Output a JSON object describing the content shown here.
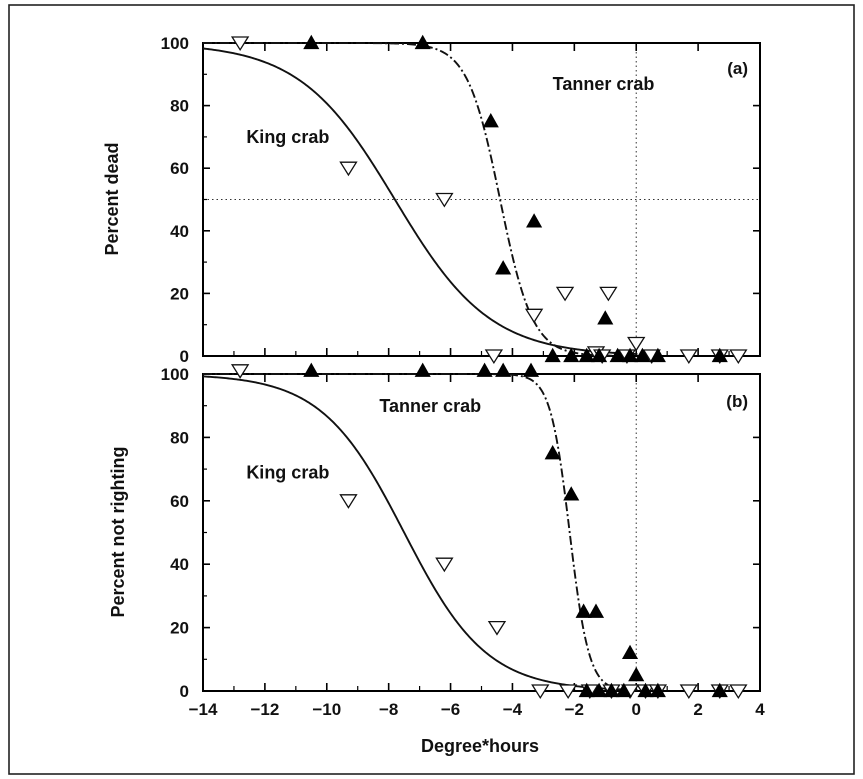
{
  "chart_data": [
    {
      "type": "scatter",
      "panel_label": "(a)",
      "ylabel": "Percent dead",
      "xlabel": "",
      "xlim": [
        -14,
        4
      ],
      "ylim": [
        0,
        100
      ],
      "x_ticks": [
        -14,
        -12,
        -10,
        -8,
        -6,
        -4,
        -2,
        0,
        2,
        4
      ],
      "y_ticks": [
        0,
        20,
        40,
        60,
        80,
        100
      ],
      "x_tick_labels_shown": false,
      "reference_lines": {
        "x": 0,
        "y": 50
      },
      "annotations": [
        {
          "text": "Tanner crab",
          "x": -2.7,
          "y": 85
        },
        {
          "text": "King crab",
          "x": -12.6,
          "y": 68
        }
      ],
      "series": [
        {
          "name": "King crab",
          "marker": "open-triangle-down",
          "points": [
            [
              -12.8,
              100
            ],
            [
              -9.3,
              60
            ],
            [
              -6.2,
              50
            ],
            [
              -4.6,
              0
            ],
            [
              -3.3,
              13
            ],
            [
              -2.3,
              20
            ],
            [
              -1.3,
              1
            ],
            [
              -1.1,
              0
            ],
            [
              -0.9,
              20
            ],
            [
              -0.3,
              0
            ],
            [
              0.0,
              4
            ],
            [
              0.5,
              0
            ],
            [
              1.7,
              0
            ],
            [
              2.7,
              0
            ],
            [
              3.3,
              0
            ]
          ],
          "fit": {
            "model": "logistic",
            "midpoint": -7.8,
            "slope": 0.65,
            "color": "#111111",
            "style": "solid"
          }
        },
        {
          "name": "Tanner crab",
          "marker": "filled-triangle-up",
          "points": [
            [
              -10.5,
              100
            ],
            [
              -6.9,
              100
            ],
            [
              -4.7,
              75
            ],
            [
              -4.3,
              28
            ],
            [
              -3.3,
              43
            ],
            [
              -2.7,
              0
            ],
            [
              -2.1,
              0
            ],
            [
              -1.6,
              0
            ],
            [
              -1.2,
              0
            ],
            [
              -1.0,
              12
            ],
            [
              -0.6,
              0
            ],
            [
              -0.2,
              0
            ],
            [
              0.2,
              0
            ],
            [
              0.7,
              0
            ],
            [
              2.7,
              0
            ]
          ],
          "fit": {
            "model": "logistic",
            "midpoint": -4.4,
            "slope": 1.9,
            "color": "#111111",
            "style": "dash-dot"
          }
        }
      ]
    },
    {
      "type": "scatter",
      "panel_label": "(b)",
      "ylabel": "Percent not righting",
      "xlabel": "Degree*hours",
      "xlim": [
        -14,
        4
      ],
      "ylim": [
        0,
        100
      ],
      "x_ticks": [
        -14,
        -12,
        -10,
        -8,
        -6,
        -4,
        -2,
        0,
        2,
        4
      ],
      "x_tick_labels": [
        "−14",
        "−12",
        "−10",
        "−8",
        "−6",
        "−4",
        "−2",
        "0",
        "2",
        "4"
      ],
      "y_ticks": [
        0,
        20,
        40,
        60,
        80,
        100
      ],
      "x_tick_labels_shown": true,
      "reference_lines": {
        "x": 0
      },
      "annotations": [
        {
          "text": "Tanner crab",
          "x": -8.3,
          "y": 88
        },
        {
          "text": "King crab",
          "x": -12.6,
          "y": 67
        }
      ],
      "series": [
        {
          "name": "King crab",
          "marker": "open-triangle-down",
          "points": [
            [
              -12.8,
              101
            ],
            [
              -9.3,
              60
            ],
            [
              -6.2,
              40
            ],
            [
              -4.5,
              20
            ],
            [
              -3.1,
              0
            ],
            [
              -2.2,
              0
            ],
            [
              -1.5,
              0
            ],
            [
              -0.8,
              0
            ],
            [
              -0.2,
              0
            ],
            [
              0.3,
              0
            ],
            [
              0.7,
              0
            ],
            [
              1.7,
              0
            ],
            [
              2.7,
              0
            ],
            [
              3.3,
              0
            ]
          ],
          "fit": {
            "model": "logistic",
            "midpoint": -7.5,
            "slope": 0.75,
            "color": "#111111",
            "style": "solid"
          }
        },
        {
          "name": "Tanner crab",
          "marker": "filled-triangle-up",
          "points": [
            [
              -10.5,
              101
            ],
            [
              -6.9,
              101
            ],
            [
              -4.9,
              101
            ],
            [
              -4.3,
              101
            ],
            [
              -3.4,
              101
            ],
            [
              -2.7,
              75
            ],
            [
              -2.1,
              62
            ],
            [
              -1.7,
              25
            ],
            [
              -1.3,
              25
            ],
            [
              -1.6,
              0
            ],
            [
              -1.2,
              0
            ],
            [
              -0.8,
              0
            ],
            [
              -0.4,
              0
            ],
            [
              -0.2,
              12
            ],
            [
              0.0,
              5
            ],
            [
              0.3,
              0
            ],
            [
              0.7,
              0
            ],
            [
              2.7,
              0
            ]
          ],
          "fit": {
            "model": "logistic",
            "midpoint": -2.15,
            "slope": 3.2,
            "color": "#111111",
            "style": "dash-dot"
          }
        }
      ]
    }
  ]
}
